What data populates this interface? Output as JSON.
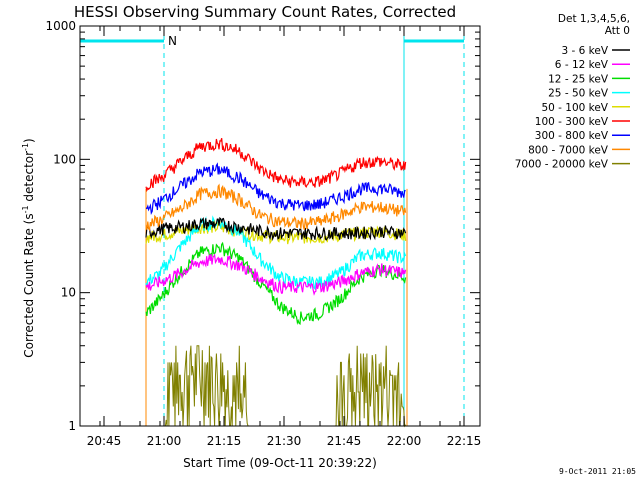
{
  "chart_data": {
    "type": "line",
    "title": "HESSI Observing Summary Count Rates, Corrected",
    "xlabel": "Start Time (09-Oct-11 20:39:22)",
    "ylabel_prefix": "Corrected Count Rate (s",
    "ylabel_sup1": "-1",
    "ylabel_mid": " detector",
    "ylabel_sup2": "-1",
    "ylabel_suffix": ")",
    "y_scale": "log",
    "ylim": [
      1,
      1000
    ],
    "xlim_minutes_after_2039": [
      0,
      100
    ],
    "y_ticks": [
      {
        "value": 1,
        "label": "1"
      },
      {
        "value": 10,
        "label": "10"
      },
      {
        "value": 100,
        "label": "100"
      },
      {
        "value": 1000,
        "label": "1000"
      }
    ],
    "x_ticks": [
      {
        "value": 6,
        "label": "20:45"
      },
      {
        "value": 21,
        "label": "21:00"
      },
      {
        "value": 36,
        "label": "21:15"
      },
      {
        "value": 51,
        "label": "21:30"
      },
      {
        "value": 66,
        "label": "21:45"
      },
      {
        "value": 81,
        "label": "22:00"
      },
      {
        "value": 96,
        "label": "22:15"
      }
    ],
    "legend_header": [
      "Det 1,3,4,5,6,",
      "Att 0"
    ],
    "legend_position": "right",
    "night_marker_label": "N",
    "observation_window": {
      "start": 16.5,
      "end": 81.5
    },
    "night_bars": [
      {
        "start": 0,
        "end": 21
      },
      {
        "start": 81,
        "end": 96
      }
    ],
    "saa_lines": [
      {
        "x": 0,
        "style": "solid"
      },
      {
        "x": 21,
        "style": "dashed"
      },
      {
        "x": 81,
        "style": "solid"
      },
      {
        "x": 96,
        "style": "dashed"
      }
    ],
    "series": [
      {
        "name": "3 - 6 keV",
        "color": "#000000",
        "points": [
          [
            16.5,
            28
          ],
          [
            20,
            30
          ],
          [
            25,
            31
          ],
          [
            30,
            33
          ],
          [
            35,
            33
          ],
          [
            40,
            31
          ],
          [
            45,
            29
          ],
          [
            50,
            28
          ],
          [
            55,
            28
          ],
          [
            60,
            28
          ],
          [
            65,
            28
          ],
          [
            70,
            28
          ],
          [
            75,
            29
          ],
          [
            81.5,
            28
          ]
        ]
      },
      {
        "name": "6 - 12 keV",
        "color": "#ff00ff",
        "points": [
          [
            16.5,
            11
          ],
          [
            20,
            12
          ],
          [
            25,
            14
          ],
          [
            30,
            17
          ],
          [
            35,
            18
          ],
          [
            40,
            16
          ],
          [
            45,
            13
          ],
          [
            50,
            11
          ],
          [
            55,
            11
          ],
          [
            60,
            11
          ],
          [
            65,
            12
          ],
          [
            70,
            14
          ],
          [
            75,
            15
          ],
          [
            81.5,
            14
          ]
        ]
      },
      {
        "name": "12 - 25 keV",
        "color": "#00dd00",
        "points": [
          [
            16.5,
            7
          ],
          [
            20,
            9
          ],
          [
            25,
            14
          ],
          [
            30,
            20
          ],
          [
            35,
            22
          ],
          [
            40,
            18
          ],
          [
            45,
            12
          ],
          [
            50,
            8
          ],
          [
            55,
            6.5
          ],
          [
            60,
            7
          ],
          [
            65,
            9
          ],
          [
            70,
            13
          ],
          [
            75,
            15
          ],
          [
            81.5,
            13
          ]
        ]
      },
      {
        "name": "25 - 50 keV",
        "color": "#00ffff",
        "points": [
          [
            16.5,
            12
          ],
          [
            20,
            14
          ],
          [
            25,
            22
          ],
          [
            30,
            32
          ],
          [
            35,
            34
          ],
          [
            40,
            28
          ],
          [
            45,
            18
          ],
          [
            50,
            13
          ],
          [
            55,
            12
          ],
          [
            60,
            12
          ],
          [
            65,
            14
          ],
          [
            70,
            19
          ],
          [
            75,
            20
          ],
          [
            81.5,
            18
          ]
        ]
      },
      {
        "name": "50 - 100 keV",
        "color": "#dddd00",
        "points": [
          [
            16.5,
            26
          ],
          [
            20,
            27
          ],
          [
            25,
            29
          ],
          [
            30,
            31
          ],
          [
            35,
            31
          ],
          [
            40,
            29
          ],
          [
            45,
            27
          ],
          [
            50,
            26
          ],
          [
            55,
            26
          ],
          [
            60,
            26
          ],
          [
            65,
            27
          ],
          [
            70,
            28
          ],
          [
            75,
            29
          ],
          [
            81.5,
            27
          ]
        ]
      },
      {
        "name": "100 - 300 keV",
        "color": "#ff0000",
        "points": [
          [
            16.5,
            65
          ],
          [
            20,
            72
          ],
          [
            25,
            95
          ],
          [
            30,
            125
          ],
          [
            35,
            132
          ],
          [
            40,
            115
          ],
          [
            45,
            85
          ],
          [
            50,
            70
          ],
          [
            55,
            67
          ],
          [
            60,
            68
          ],
          [
            65,
            78
          ],
          [
            70,
            95
          ],
          [
            75,
            97
          ],
          [
            81.5,
            88
          ]
        ]
      },
      {
        "name": "300 - 800 keV",
        "color": "#0000ff",
        "points": [
          [
            16.5,
            42
          ],
          [
            20,
            48
          ],
          [
            25,
            62
          ],
          [
            30,
            80
          ],
          [
            35,
            84
          ],
          [
            40,
            72
          ],
          [
            45,
            55
          ],
          [
            50,
            47
          ],
          [
            55,
            45
          ],
          [
            60,
            46
          ],
          [
            65,
            52
          ],
          [
            70,
            60
          ],
          [
            75,
            61
          ],
          [
            81.5,
            56
          ]
        ]
      },
      {
        "name": "800 - 7000 keV",
        "color": "#ff8800",
        "points": [
          [
            16.5,
            32
          ],
          [
            20,
            35
          ],
          [
            25,
            42
          ],
          [
            30,
            55
          ],
          [
            35,
            58
          ],
          [
            40,
            50
          ],
          [
            45,
            38
          ],
          [
            50,
            34
          ],
          [
            55,
            33
          ],
          [
            60,
            34
          ],
          [
            65,
            38
          ],
          [
            70,
            44
          ],
          [
            75,
            44
          ],
          [
            81.5,
            40
          ]
        ]
      },
      {
        "name": "7000 - 20000 keV",
        "color": "#808000",
        "points": [
          [
            16.5,
            1
          ],
          [
            20,
            1
          ],
          [
            21,
            1
          ],
          [
            22,
            1.8
          ],
          [
            24,
            2.4
          ],
          [
            26,
            3
          ],
          [
            28,
            3.5
          ],
          [
            30,
            3.8
          ],
          [
            32,
            3.5
          ],
          [
            34,
            3
          ],
          [
            36,
            2.5
          ],
          [
            38,
            2
          ],
          [
            40,
            1.6
          ],
          [
            42,
            1
          ],
          [
            60,
            1
          ],
          [
            64,
            1
          ],
          [
            66,
            1.8
          ],
          [
            70,
            2.4
          ],
          [
            74,
            2.6
          ],
          [
            78,
            2.2
          ],
          [
            81.5,
            1
          ]
        ]
      }
    ]
  },
  "footer": {
    "timestamp": "9-Oct-2011 21:05"
  }
}
